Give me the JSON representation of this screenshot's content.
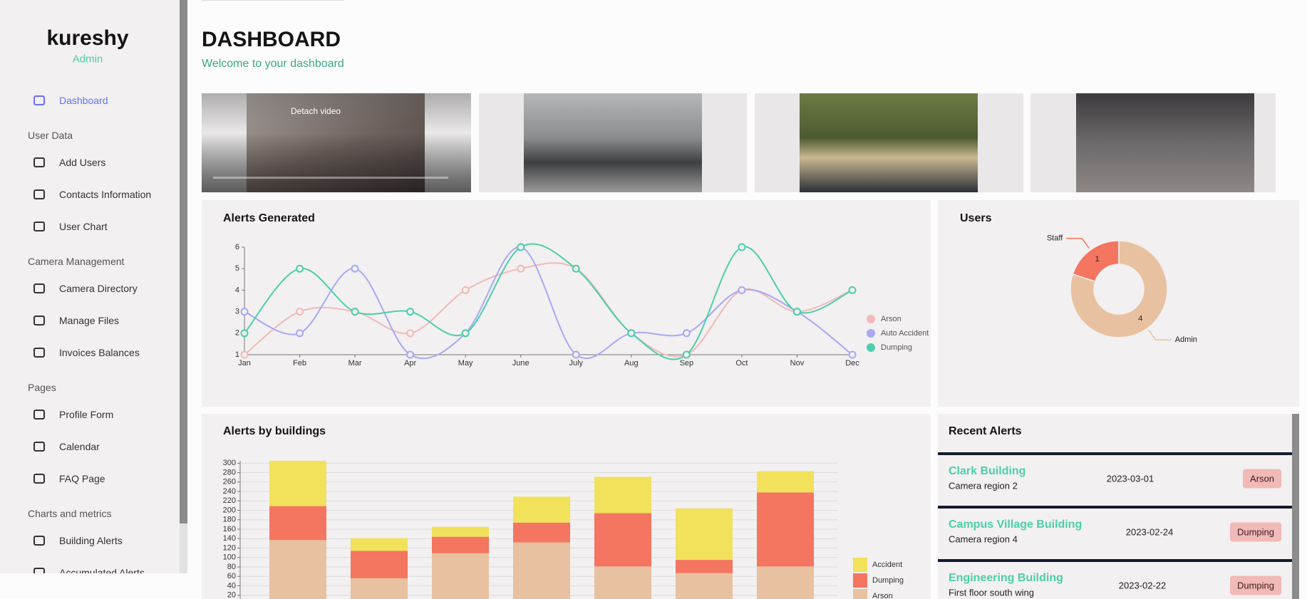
{
  "sidebar": {
    "title": "kureshy",
    "role": "Admin",
    "nav": [
      {
        "items": [
          "Dashboard"
        ]
      },
      {
        "heading": "User Data",
        "items": [
          "Add Users",
          "Contacts Information",
          "User Chart"
        ]
      },
      {
        "heading": "Camera Management",
        "items": [
          "Camera Directory",
          "Manage Files",
          "Invoices Balances"
        ]
      },
      {
        "heading": "Pages",
        "items": [
          "Profile Form",
          "Calendar",
          "FAQ Page"
        ]
      },
      {
        "heading": "Charts and metrics",
        "items": [
          "Building Alerts",
          "Accumulated Alerts"
        ]
      }
    ]
  },
  "header": {
    "title": "DASHBOARD",
    "subtitle": "Welcome to your dashboard"
  },
  "video_overlay": "Detach video",
  "chart_data": [
    {
      "type": "line",
      "title": "Alerts Generated",
      "categories": [
        "Jan",
        "Feb",
        "Mar",
        "Apr",
        "May",
        "June",
        "July",
        "Aug",
        "Sep",
        "Oct",
        "Nov",
        "Dec"
      ],
      "ylim": [
        1,
        6
      ],
      "yticks": [
        1,
        2,
        3,
        4,
        5,
        6
      ],
      "series": [
        {
          "name": "Arson",
          "color": "#f1b9b7",
          "values": [
            1,
            3,
            3,
            2,
            4,
            5,
            5,
            2,
            1,
            4,
            3,
            4
          ]
        },
        {
          "name": "Auto Accident",
          "color": "#a8a8f6",
          "values": [
            3,
            2,
            5,
            1,
            2,
            6,
            1,
            2,
            2,
            4,
            3,
            1
          ]
        },
        {
          "name": "Dumping",
          "color": "#4cceac",
          "values": [
            2,
            5,
            3,
            3,
            2,
            6,
            5,
            2,
            1,
            6,
            3,
            4
          ]
        }
      ]
    },
    {
      "type": "pie",
      "title": "Users",
      "labels": [
        "Staff",
        "Admin"
      ],
      "values": [
        1,
        4
      ],
      "colors": [
        "#f47560",
        "#e8c1a0"
      ]
    },
    {
      "type": "bar",
      "title": "Alerts by buildings",
      "stacked": true,
      "grid": true,
      "categories": [
        null,
        null,
        null,
        null,
        null,
        null,
        null
      ],
      "ylim": [
        0,
        305
      ],
      "yticks": [
        20,
        40,
        60,
        80,
        100,
        120,
        140,
        160,
        180,
        200,
        220,
        240,
        260,
        280,
        300
      ],
      "series": [
        {
          "name": "Arson",
          "color": "#e8c1a0",
          "values": [
            137,
            56,
            109,
            132,
            81,
            67,
            81
          ]
        },
        {
          "name": "Dumping",
          "color": "#f47560",
          "values": [
            72,
            58,
            35,
            42,
            113,
            28,
            157
          ]
        },
        {
          "name": "Accident",
          "color": "#f1e15b",
          "values": [
            96,
            27,
            21,
            55,
            77,
            109,
            45
          ]
        }
      ]
    }
  ],
  "recent_alerts": {
    "title": "Recent Alerts",
    "rows": [
      {
        "building": "Clark Building",
        "location": "Camera region 2",
        "date": "2023-03-01",
        "type": "Arson"
      },
      {
        "building": "Campus Village Building",
        "location": "Camera region 4",
        "date": "2023-02-24",
        "type": "Dumping"
      },
      {
        "building": "Engineering Building",
        "location": "First floor south wing",
        "date": "2023-02-22",
        "type": "Dumping"
      }
    ]
  }
}
